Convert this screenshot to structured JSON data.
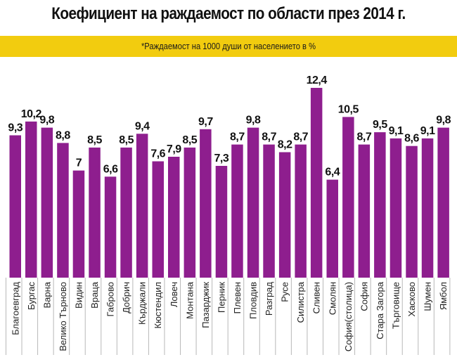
{
  "title": "Коефициент на раждаемост по области през 2014 г.",
  "subtitle": "*Раждаемост на 1000 души от населението в %",
  "colors": {
    "bar": "#8e1e8e",
    "subtitle_band": "#f2cc0f",
    "separator": "#b8b8b8",
    "text": "#111111"
  },
  "chart_data": {
    "type": "bar",
    "title": "Коефициент на раждаемост по области през 2014 г.",
    "subtitle": "*Раждаемост на 1000 души от населението в %",
    "xlabel": "",
    "ylabel": "",
    "ylim": [
      0,
      12.4
    ],
    "grid": false,
    "legend": "none",
    "categories": [
      "Благоевград",
      "Бургас",
      "Варна",
      "Велико Търново",
      "Видин",
      "Враца",
      "Габрово",
      "Добрич",
      "Кърджали",
      "Кюстендил",
      "Ловеч",
      "Монтана",
      "Пазарджик",
      "Перник",
      "Плевен",
      "Пловдив",
      "Разград",
      "Русе",
      "Силистра",
      "Сливен",
      "Смолян",
      "София(столица)",
      "София",
      "Стара Загора",
      "Търговище",
      "Хасково",
      "Шумен",
      "Ямбол"
    ],
    "values": [
      9.3,
      10.2,
      9.8,
      8.8,
      7,
      8.5,
      6.6,
      8.5,
      9.4,
      7.6,
      7.9,
      8.5,
      9.7,
      7.3,
      8.7,
      9.8,
      8.7,
      8.2,
      8.7,
      12.4,
      6.4,
      10.5,
      8.7,
      9.5,
      9.1,
      8.6,
      9.1,
      9.8
    ],
    "value_labels": [
      "9,3",
      "10,2",
      "9,8",
      "8,8",
      "7",
      "8,5",
      "6,6",
      "8,5",
      "9,4",
      "7,6",
      "7,9",
      "8,5",
      "9,7",
      "7,3",
      "8,7",
      "9,8",
      "8,7",
      "8,2",
      "8,7",
      "12,4",
      "6,4",
      "10,5",
      "8,7",
      "9,5",
      "9,1",
      "8,6",
      "9,1",
      "9,8"
    ]
  }
}
